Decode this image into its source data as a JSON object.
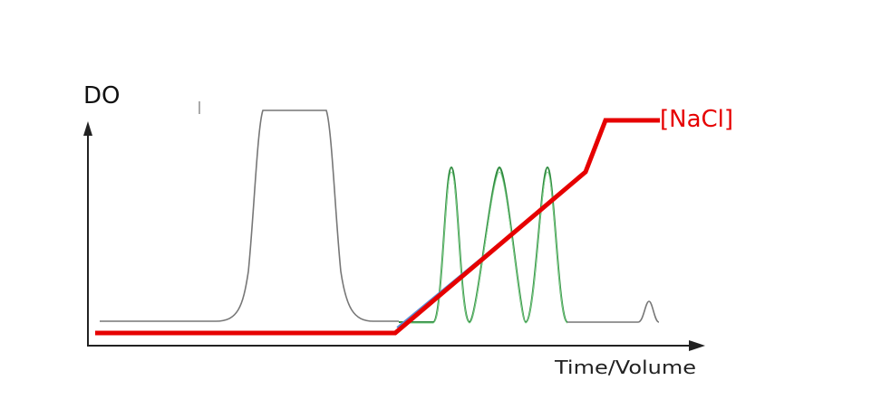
{
  "labels": {
    "y_axis": "DO",
    "x_axis": "Time/Volume",
    "gradient": "[NaCl]"
  }
}
